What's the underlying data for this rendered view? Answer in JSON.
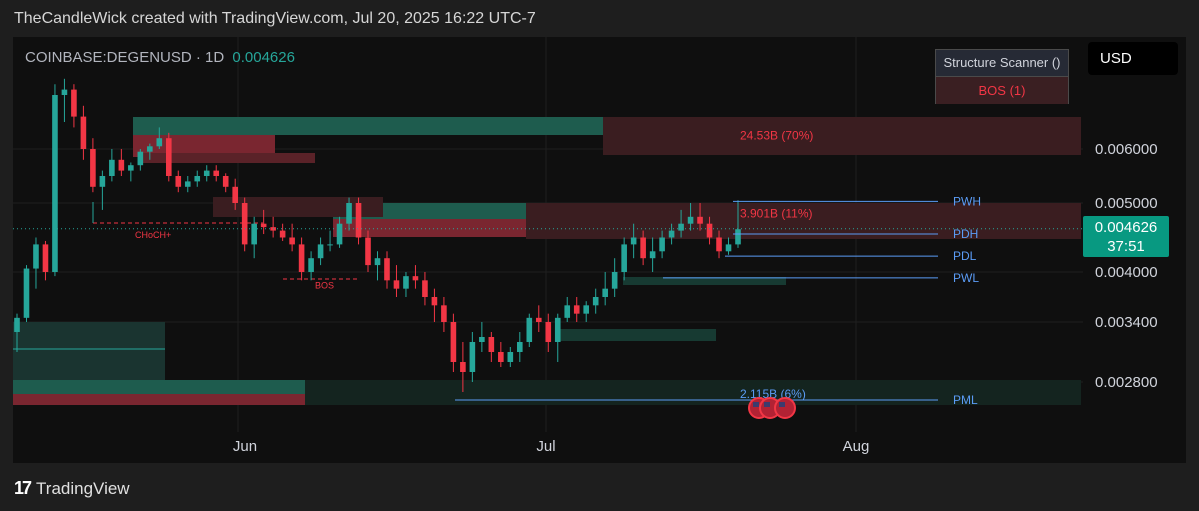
{
  "header": {
    "attribution": "TheCandleWick created with TradingView.com, Jul 20, 2025 16:22 UTC-7"
  },
  "symbol": {
    "name": "COINBASE:DEGENUSD · 1D",
    "price": "0.004626"
  },
  "currency": "USD",
  "scanner": {
    "title": "Structure Scanner ()",
    "result": "BOS (1)"
  },
  "price_tag": {
    "price": "0.004626",
    "countdown": "37:51"
  },
  "footer": {
    "brand": "TradingView",
    "logo_text": "17"
  },
  "colors": {
    "up": "#26a69a",
    "down": "#f23645",
    "level": "#5b9cf6",
    "tag": "#089981"
  },
  "chart_data": {
    "type": "candlestick",
    "y_ticks": [
      "0.006000",
      "0.005000",
      "0.004000",
      "0.003400",
      "0.002800"
    ],
    "x_ticks": [
      "Jun",
      "Jul",
      "Aug"
    ],
    "levels": [
      {
        "label": "PWH",
        "value": 0.00503
      },
      {
        "label": "PDH",
        "value": 0.00455
      },
      {
        "label": "PDL",
        "value": 0.00423
      },
      {
        "label": "PWL",
        "value": 0.00393
      },
      {
        "label": "PML",
        "value": 0.00262
      }
    ],
    "annotations": [
      {
        "text": "24.53B (70%)",
        "value": 0.00625
      },
      {
        "text": "3.901B (11%)",
        "value": 0.00485
      },
      {
        "text": "2.115B (6%)",
        "value": 0.00268
      },
      {
        "text": "CHoCH+",
        "value": 0.00455
      },
      {
        "text": "BOS",
        "value": 0.00385
      }
    ],
    "candles": [
      [
        0.0033,
        0.0035,
        0.0031,
        0.00345
      ],
      [
        0.00345,
        0.0041,
        0.0034,
        0.00405
      ],
      [
        0.00405,
        0.0045,
        0.0038,
        0.0044
      ],
      [
        0.0044,
        0.00445,
        0.0039,
        0.004
      ],
      [
        0.004,
        0.0072,
        0.00395,
        0.007
      ],
      [
        0.007,
        0.0073,
        0.0065,
        0.0071
      ],
      [
        0.0071,
        0.0072,
        0.0064,
        0.0066
      ],
      [
        0.0066,
        0.0068,
        0.0058,
        0.006
      ],
      [
        0.006,
        0.0062,
        0.0052,
        0.0053
      ],
      [
        0.0053,
        0.0056,
        0.0049,
        0.0055
      ],
      [
        0.0055,
        0.006,
        0.0054,
        0.0058
      ],
      [
        0.0058,
        0.006,
        0.0055,
        0.0056
      ],
      [
        0.0056,
        0.00575,
        0.0054,
        0.0057
      ],
      [
        0.0057,
        0.006,
        0.0056,
        0.00595
      ],
      [
        0.00595,
        0.0061,
        0.0058,
        0.00605
      ],
      [
        0.00605,
        0.0064,
        0.006,
        0.0062
      ],
      [
        0.0062,
        0.0063,
        0.0054,
        0.0055
      ],
      [
        0.0055,
        0.0056,
        0.0052,
        0.0053
      ],
      [
        0.0053,
        0.0055,
        0.0052,
        0.0054
      ],
      [
        0.0054,
        0.0056,
        0.0053,
        0.0055
      ],
      [
        0.0055,
        0.0057,
        0.0054,
        0.0056
      ],
      [
        0.0056,
        0.0057,
        0.0054,
        0.0055
      ],
      [
        0.0055,
        0.00555,
        0.0052,
        0.0053
      ],
      [
        0.0053,
        0.00545,
        0.0049,
        0.005
      ],
      [
        0.005,
        0.0051,
        0.0043,
        0.0044
      ],
      [
        0.0044,
        0.0048,
        0.0042,
        0.0047
      ],
      [
        0.0047,
        0.0049,
        0.00455,
        0.00465
      ],
      [
        0.00465,
        0.0048,
        0.0045,
        0.0046
      ],
      [
        0.0046,
        0.0047,
        0.00445,
        0.0045
      ],
      [
        0.0045,
        0.0047,
        0.0043,
        0.0044
      ],
      [
        0.0044,
        0.0045,
        0.0039,
        0.004
      ],
      [
        0.004,
        0.0043,
        0.0039,
        0.0042
      ],
      [
        0.0042,
        0.0045,
        0.0041,
        0.0044
      ],
      [
        0.0044,
        0.0046,
        0.0043,
        0.0044
      ],
      [
        0.0044,
        0.0048,
        0.00435,
        0.0047
      ],
      [
        0.0047,
        0.0051,
        0.0046,
        0.005
      ],
      [
        0.005,
        0.0051,
        0.0044,
        0.0045
      ],
      [
        0.0045,
        0.0046,
        0.004,
        0.0041
      ],
      [
        0.0041,
        0.0043,
        0.0039,
        0.0042
      ],
      [
        0.0042,
        0.0043,
        0.0038,
        0.0039
      ],
      [
        0.0039,
        0.0041,
        0.0037,
        0.0038
      ],
      [
        0.0038,
        0.004,
        0.0037,
        0.00395
      ],
      [
        0.00395,
        0.0041,
        0.0038,
        0.0039
      ],
      [
        0.0039,
        0.004,
        0.0036,
        0.0037
      ],
      [
        0.0037,
        0.0038,
        0.0034,
        0.0036
      ],
      [
        0.0036,
        0.0037,
        0.0033,
        0.0034
      ],
      [
        0.0034,
        0.0035,
        0.0029,
        0.003
      ],
      [
        0.003,
        0.0032,
        0.0027,
        0.0029
      ],
      [
        0.0029,
        0.0033,
        0.0028,
        0.0032
      ],
      [
        0.0032,
        0.0034,
        0.0031,
        0.00325
      ],
      [
        0.00325,
        0.0033,
        0.003,
        0.0031
      ],
      [
        0.0031,
        0.0032,
        0.00295,
        0.003
      ],
      [
        0.003,
        0.00315,
        0.00295,
        0.0031
      ],
      [
        0.0031,
        0.0033,
        0.003,
        0.0032
      ],
      [
        0.0032,
        0.0035,
        0.00315,
        0.00345
      ],
      [
        0.00345,
        0.0036,
        0.0033,
        0.0034
      ],
      [
        0.0034,
        0.0035,
        0.0031,
        0.0032
      ],
      [
        0.0032,
        0.0035,
        0.003,
        0.00345
      ],
      [
        0.00345,
        0.0037,
        0.0034,
        0.0036
      ],
      [
        0.0036,
        0.0037,
        0.0034,
        0.0035
      ],
      [
        0.0035,
        0.00365,
        0.0034,
        0.0036
      ],
      [
        0.0036,
        0.0038,
        0.0035,
        0.0037
      ],
      [
        0.0037,
        0.004,
        0.0036,
        0.0038
      ],
      [
        0.0038,
        0.0042,
        0.0037,
        0.004
      ],
      [
        0.004,
        0.0045,
        0.0039,
        0.0044
      ],
      [
        0.0044,
        0.0047,
        0.0042,
        0.0045
      ],
      [
        0.0045,
        0.0046,
        0.0041,
        0.0042
      ],
      [
        0.0042,
        0.0045,
        0.004,
        0.0043
      ],
      [
        0.0043,
        0.0046,
        0.0042,
        0.0045
      ],
      [
        0.0045,
        0.0047,
        0.0044,
        0.0046
      ],
      [
        0.0046,
        0.0049,
        0.0045,
        0.0047
      ],
      [
        0.0047,
        0.005,
        0.0046,
        0.0048
      ],
      [
        0.0048,
        0.005,
        0.0046,
        0.0047
      ],
      [
        0.0047,
        0.0048,
        0.0044,
        0.0045
      ],
      [
        0.0045,
        0.0046,
        0.0042,
        0.0043
      ],
      [
        0.0043,
        0.0045,
        0.00425,
        0.0044
      ],
      [
        0.0044,
        0.00505,
        0.00435,
        0.00462
      ]
    ]
  }
}
